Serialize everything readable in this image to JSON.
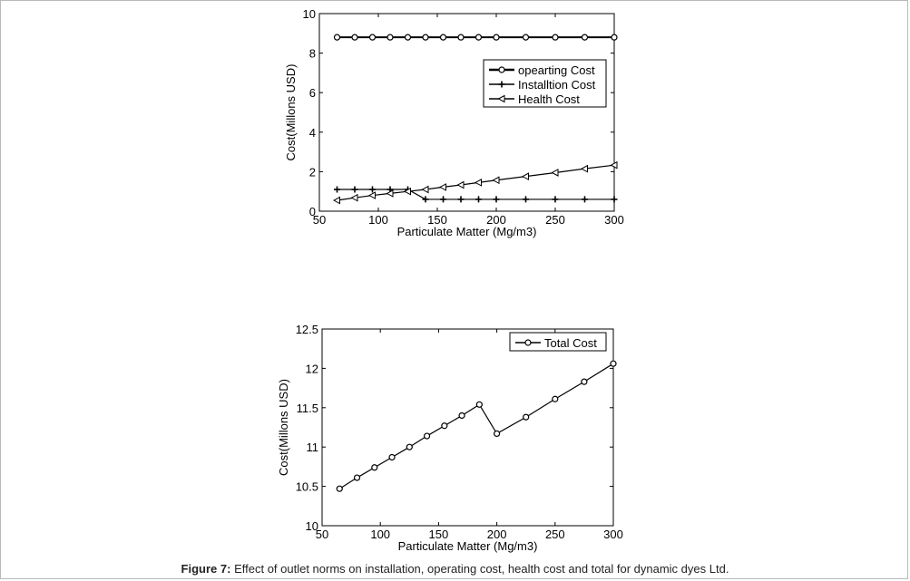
{
  "figure": {
    "caption_label": "Figure 7:",
    "caption_text": "Effect of outlet norms on installation, operating cost, health cost and total for dynamic dyes Ltd."
  },
  "chart_data": [
    {
      "type": "line",
      "title": "",
      "xlabel": "Particulate Matter (Mg/m3)",
      "ylabel": "Cost(Millons USD)",
      "xlim": [
        50,
        300
      ],
      "ylim": [
        0,
        10
      ],
      "xticks": [
        50,
        100,
        150,
        200,
        250,
        300
      ],
      "yticks": [
        0,
        2,
        4,
        6,
        8,
        10
      ],
      "legend_position": "top-right",
      "x": [
        65,
        80,
        95,
        110,
        125,
        140,
        155,
        170,
        185,
        200,
        225,
        250,
        275,
        300
      ],
      "series": [
        {
          "name": "opearting Cost",
          "marker": "circle",
          "values": [
            8.8,
            8.8,
            8.8,
            8.8,
            8.8,
            8.8,
            8.8,
            8.8,
            8.8,
            8.8,
            8.8,
            8.8,
            8.8,
            8.8
          ]
        },
        {
          "name": "Installtion Cost",
          "marker": "plus",
          "values": [
            1.1,
            1.1,
            1.1,
            1.1,
            1.1,
            0.6,
            0.6,
            0.6,
            0.6,
            0.6,
            0.6,
            0.6,
            0.6,
            0.6
          ]
        },
        {
          "name": "Health Cost",
          "marker": "triangle-left",
          "values": [
            0.55,
            0.68,
            0.8,
            0.9,
            1.0,
            1.1,
            1.22,
            1.33,
            1.45,
            1.57,
            1.76,
            1.95,
            2.15,
            2.33
          ]
        }
      ]
    },
    {
      "type": "line",
      "title": "",
      "xlabel": "Particulate Matter (Mg/m3)",
      "ylabel": "Cost(Millons USD)",
      "xlim": [
        50,
        300
      ],
      "ylim": [
        10,
        12.5
      ],
      "xticks": [
        50,
        100,
        150,
        200,
        250,
        300
      ],
      "yticks": [
        10,
        10.5,
        11,
        11.5,
        12,
        12.5
      ],
      "legend_position": "top-right",
      "x": [
        65,
        80,
        95,
        110,
        125,
        140,
        155,
        170,
        185,
        200,
        225,
        250,
        275,
        300
      ],
      "series": [
        {
          "name": "Total Cost",
          "marker": "circle",
          "values": [
            10.47,
            10.61,
            10.74,
            10.87,
            11.0,
            11.14,
            11.27,
            11.4,
            11.54,
            11.17,
            11.38,
            11.61,
            11.83,
            12.06
          ]
        }
      ]
    }
  ]
}
